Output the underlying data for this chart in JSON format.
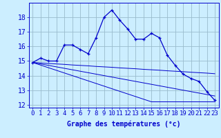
{
  "xlabel": "Graphe des températures (°c)",
  "x": [
    0,
    1,
    2,
    3,
    4,
    5,
    6,
    7,
    8,
    9,
    10,
    11,
    12,
    13,
    14,
    15,
    16,
    17,
    18,
    19,
    20,
    21,
    22,
    23
  ],
  "temp": [
    14.9,
    15.2,
    15.0,
    15.0,
    16.1,
    16.1,
    15.8,
    15.5,
    16.6,
    18.0,
    18.5,
    17.8,
    17.2,
    16.5,
    16.5,
    16.9,
    16.6,
    15.4,
    14.7,
    14.1,
    13.8,
    13.6,
    12.9,
    12.3
  ],
  "line1": [
    14.9,
    14.87,
    14.83,
    14.8,
    14.77,
    14.73,
    14.7,
    14.67,
    14.63,
    14.6,
    14.57,
    14.53,
    14.5,
    14.47,
    14.43,
    14.4,
    14.37,
    14.33,
    14.3,
    14.27,
    14.23,
    14.2,
    14.17,
    14.13
  ],
  "line2": [
    14.9,
    14.8,
    14.7,
    14.6,
    14.5,
    14.4,
    14.3,
    14.2,
    14.1,
    14.0,
    13.9,
    13.8,
    13.7,
    13.6,
    13.5,
    13.4,
    13.3,
    13.2,
    13.1,
    13.0,
    12.9,
    12.8,
    12.7,
    12.6
  ],
  "line3": [
    14.9,
    14.72,
    14.54,
    14.36,
    14.18,
    14.0,
    13.82,
    13.64,
    13.46,
    13.28,
    13.1,
    12.92,
    12.74,
    12.56,
    12.38,
    12.2,
    12.2,
    12.2,
    12.2,
    12.2,
    12.2,
    12.2,
    12.2,
    12.2
  ],
  "ylim": [
    11.8,
    19.0
  ],
  "yticks": [
    12,
    13,
    14,
    15,
    16,
    17,
    18
  ],
  "xlim": [
    -0.5,
    23.5
  ],
  "line_color": "#0000cc",
  "bg_color": "#cceeff",
  "grid_color": "#99bbcc",
  "xlabel_fontsize": 7,
  "tick_fontsize": 6.5
}
